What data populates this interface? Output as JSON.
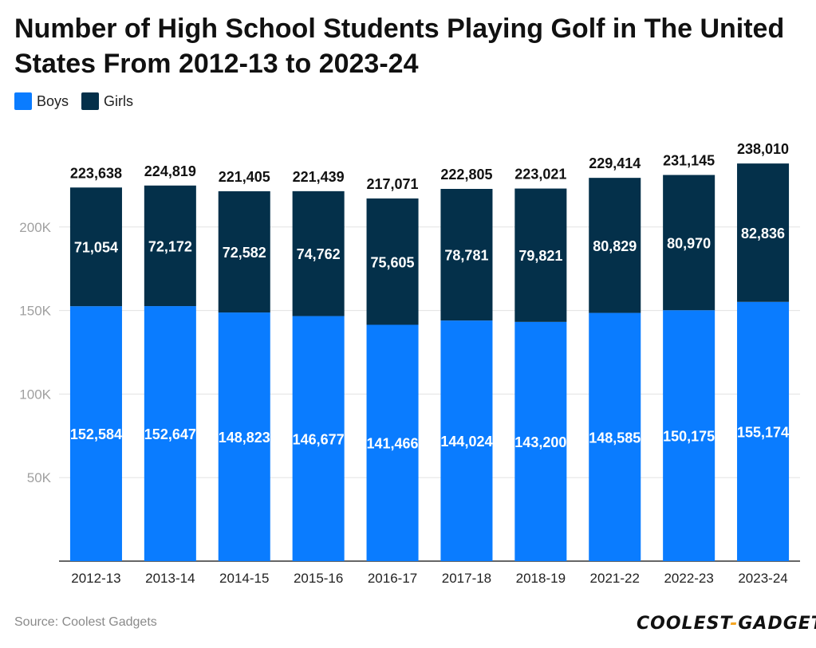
{
  "chart_data": {
    "type": "bar",
    "stacked": true,
    "title": "Number of High School Students Playing Golf in The United States From 2012-13 to 2023-24",
    "categories": [
      "2012-13",
      "2013-14",
      "2014-15",
      "2015-16",
      "2016-17",
      "2017-18",
      "2018-19",
      "2021-22",
      "2022-23",
      "2023-24"
    ],
    "series": [
      {
        "name": "Boys",
        "color": "#0a7cff",
        "values": [
          152584,
          152647,
          148823,
          146677,
          141466,
          144024,
          143200,
          148585,
          150175,
          155174
        ],
        "labels": [
          "152,584",
          "152,647",
          "148,823",
          "146,677",
          "141,466",
          "144,024",
          "143,200",
          "148,585",
          "150,175",
          "155,174"
        ]
      },
      {
        "name": "Girls",
        "color": "#04304a",
        "values": [
          71054,
          72172,
          72582,
          74762,
          75605,
          78781,
          79821,
          80829,
          80970,
          82836
        ],
        "labels": [
          "71,054",
          "72,172",
          "72,582",
          "74,762",
          "75,605",
          "78,781",
          "79,821",
          "80,829",
          "80,970",
          "82,836"
        ]
      }
    ],
    "totals": [
      223638,
      224819,
      221405,
      221439,
      217071,
      222805,
      223021,
      229414,
      231145,
      238010
    ],
    "total_labels": [
      "223,638",
      "224,819",
      "221,405",
      "221,439",
      "217,071",
      "222,805",
      "223,021",
      "229,414",
      "231,145",
      "238,010"
    ],
    "ylim": [
      0,
      250000
    ],
    "yticks": [
      50000,
      100000,
      150000,
      200000
    ],
    "ytick_labels": [
      "50K",
      "100K",
      "150K",
      "200K"
    ],
    "xlabel": "",
    "ylabel": "",
    "legend_position": "top-left",
    "grid": true
  },
  "legend": {
    "boys": "Boys",
    "girls": "Girls"
  },
  "source": "Source: Coolest Gadgets",
  "logo": {
    "part1": "COOLEST",
    "dash": "-",
    "part2": "GADGETS"
  }
}
